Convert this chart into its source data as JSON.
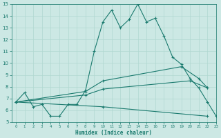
{
  "xlabel": "Humidex (Indice chaleur)",
  "bg_color": "#cce8e4",
  "line_color": "#1a7a6e",
  "grid_color": "#b0d8d0",
  "xlim": [
    -0.5,
    23
  ],
  "ylim": [
    5,
    15
  ],
  "xticks": [
    0,
    1,
    2,
    3,
    4,
    5,
    6,
    7,
    8,
    9,
    10,
    11,
    12,
    13,
    14,
    15,
    16,
    17,
    18,
    19,
    20,
    21,
    22,
    23
  ],
  "yticks": [
    5,
    6,
    7,
    8,
    9,
    10,
    11,
    12,
    13,
    14,
    15
  ],
  "line1_x": [
    0,
    1,
    2,
    3,
    4,
    5,
    6,
    7,
    8,
    9,
    10,
    11,
    12,
    13,
    14,
    15,
    16,
    17,
    18,
    19,
    20,
    21,
    22,
    23
  ],
  "line1_y": [
    6.7,
    7.5,
    6.3,
    6.5,
    5.5,
    5.5,
    6.5,
    6.5,
    7.7,
    11.0,
    13.5,
    14.5,
    13.0,
    13.7,
    15.0,
    13.5,
    13.8,
    12.3,
    10.5,
    9.9,
    8.7,
    7.9,
    6.7,
    5.5
  ],
  "line2_x": [
    0,
    8,
    10,
    19,
    21,
    22
  ],
  "line2_y": [
    6.7,
    7.6,
    8.5,
    9.7,
    8.7,
    7.9
  ],
  "line3_x": [
    0,
    8,
    10,
    20,
    22
  ],
  "line3_y": [
    6.7,
    7.3,
    7.8,
    8.5,
    7.9
  ],
  "line4_x": [
    0,
    10,
    22
  ],
  "line4_y": [
    6.7,
    6.3,
    5.5
  ]
}
